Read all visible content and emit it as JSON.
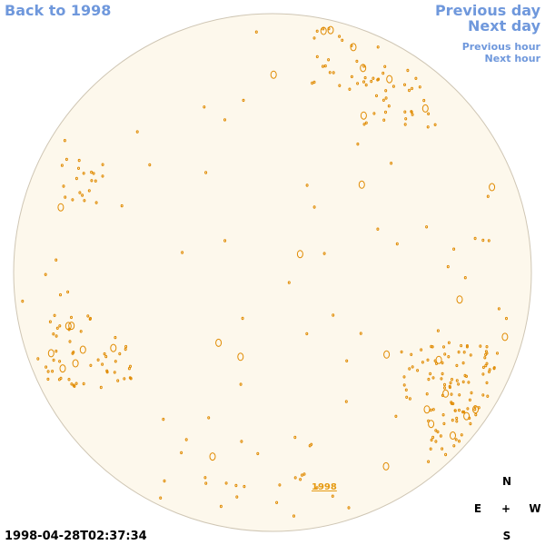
{
  "nav": {
    "back": "Back to 1998",
    "previous_day": "Previous day",
    "next_day": "Next day",
    "previous_hour": "Previous hour",
    "next_hour": "Next hour"
  },
  "image": {
    "year_label": "1998",
    "timestamp": "1998-04-28T02:37:34"
  },
  "compass": {
    "north": "N",
    "east": "E",
    "center": "+",
    "west": "W",
    "south": "S"
  }
}
